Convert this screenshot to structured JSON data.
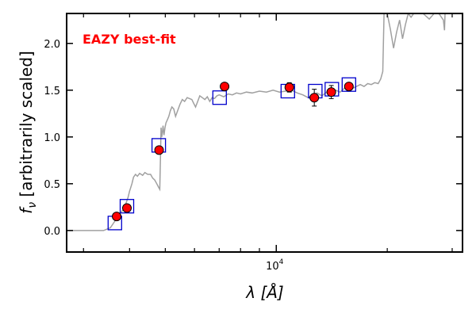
{
  "chart_data": {
    "type": "scatter",
    "xscale": "log",
    "xlim": [
      2700,
      32000
    ],
    "ylim": [
      -0.23,
      2.32
    ],
    "x_major_tick": {
      "value": 10000,
      "base": "10",
      "exp": "4"
    },
    "x_minor_ticks": [
      3000,
      4000,
      5000,
      6000,
      7000,
      8000,
      9000,
      20000,
      30000
    ],
    "y_ticks": [
      0.0,
      0.5,
      1.0,
      1.5,
      2.0
    ],
    "y_tick_labels": [
      "0.0",
      "0.5",
      "1.0",
      "1.5",
      "2.0"
    ],
    "xlabel": "λ [Å]",
    "ylabel_symbol": "f",
    "ylabel_sub": "ν",
    "ylabel_text": " [arbitrarily scaled]",
    "annotation": "EAZY best-fit",
    "colors": {
      "model": "#a0a0a0",
      "observed": "#ff0000",
      "template": "#0000cc",
      "annotation": "#ff0000"
    },
    "model_spectrum": [
      [
        2700,
        0.0
      ],
      [
        3400,
        0.0
      ],
      [
        3550,
        0.03
      ],
      [
        3650,
        0.1
      ],
      [
        3700,
        0.14
      ],
      [
        3760,
        0.18
      ],
      [
        3840,
        0.22
      ],
      [
        3880,
        0.26
      ],
      [
        3920,
        0.3
      ],
      [
        3960,
        0.35
      ],
      [
        4000,
        0.42
      ],
      [
        4060,
        0.5
      ],
      [
        4100,
        0.57
      ],
      [
        4150,
        0.6
      ],
      [
        4200,
        0.58
      ],
      [
        4260,
        0.61
      ],
      [
        4340,
        0.59
      ],
      [
        4400,
        0.62
      ],
      [
        4480,
        0.6
      ],
      [
        4560,
        0.6
      ],
      [
        4620,
        0.56
      ],
      [
        4680,
        0.54
      ],
      [
        4740,
        0.5
      ],
      [
        4800,
        0.46
      ],
      [
        4830,
        0.44
      ],
      [
        4850,
        0.75
      ],
      [
        4870,
        1.1
      ],
      [
        4890,
        1.0
      ],
      [
        4910,
        1.05
      ],
      [
        4930,
        1.12
      ],
      [
        4960,
        1.02
      ],
      [
        4990,
        1.1
      ],
      [
        5020,
        1.15
      ],
      [
        5060,
        1.18
      ],
      [
        5110,
        1.22
      ],
      [
        5160,
        1.28
      ],
      [
        5210,
        1.32
      ],
      [
        5270,
        1.3
      ],
      [
        5330,
        1.22
      ],
      [
        5400,
        1.28
      ],
      [
        5480,
        1.35
      ],
      [
        5560,
        1.4
      ],
      [
        5640,
        1.38
      ],
      [
        5730,
        1.42
      ],
      [
        5820,
        1.41
      ],
      [
        5900,
        1.4
      ],
      [
        5970,
        1.36
      ],
      [
        6040,
        1.32
      ],
      [
        6120,
        1.38
      ],
      [
        6200,
        1.44
      ],
      [
        6300,
        1.42
      ],
      [
        6400,
        1.4
      ],
      [
        6500,
        1.43
      ],
      [
        6600,
        1.38
      ],
      [
        6700,
        1.42
      ],
      [
        6800,
        1.41
      ],
      [
        6900,
        1.44
      ],
      [
        7000,
        1.45
      ],
      [
        7200,
        1.43
      ],
      [
        7400,
        1.46
      ],
      [
        7600,
        1.45
      ],
      [
        7800,
        1.47
      ],
      [
        8000,
        1.46
      ],
      [
        8300,
        1.48
      ],
      [
        8600,
        1.47
      ],
      [
        9000,
        1.49
      ],
      [
        9400,
        1.48
      ],
      [
        9800,
        1.5
      ],
      [
        10200,
        1.48
      ],
      [
        10600,
        1.49
      ],
      [
        11000,
        1.5
      ],
      [
        11400,
        1.47
      ],
      [
        11800,
        1.45
      ],
      [
        12200,
        1.42
      ],
      [
        12500,
        1.45
      ],
      [
        12900,
        1.47
      ],
      [
        13300,
        1.44
      ],
      [
        13700,
        1.48
      ],
      [
        14100,
        1.47
      ],
      [
        14500,
        1.5
      ],
      [
        14900,
        1.48
      ],
      [
        15300,
        1.52
      ],
      [
        15700,
        1.5
      ],
      [
        16100,
        1.52
      ],
      [
        16500,
        1.54
      ],
      [
        16900,
        1.56
      ],
      [
        17300,
        1.54
      ],
      [
        17700,
        1.57
      ],
      [
        18100,
        1.56
      ],
      [
        18500,
        1.58
      ],
      [
        18900,
        1.57
      ],
      [
        19200,
        1.62
      ],
      [
        19450,
        1.7
      ],
      [
        19600,
        2.32
      ],
      [
        20000,
        2.32
      ],
      [
        20400,
        2.15
      ],
      [
        20800,
        1.95
      ],
      [
        21200,
        2.12
      ],
      [
        21600,
        2.25
      ],
      [
        22000,
        2.05
      ],
      [
        22400,
        2.2
      ],
      [
        22800,
        2.32
      ],
      [
        23200,
        2.28
      ],
      [
        23600,
        2.32
      ],
      [
        24200,
        2.32
      ],
      [
        25000,
        2.32
      ],
      [
        26000,
        2.26
      ],
      [
        26800,
        2.32
      ],
      [
        27600,
        2.32
      ],
      [
        28400,
        2.25
      ],
      [
        28600,
        2.14
      ],
      [
        28700,
        2.32
      ],
      [
        29200,
        2.32
      ]
    ],
    "observed_points": [
      {
        "x": 3690,
        "y": 0.15,
        "err": 0.0
      },
      {
        "x": 3935,
        "y": 0.24,
        "err": 0.0
      },
      {
        "x": 4810,
        "y": 0.86,
        "err": 0.0
      },
      {
        "x": 7240,
        "y": 1.54,
        "err": 0.0
      },
      {
        "x": 10850,
        "y": 1.53,
        "err": 0.05
      },
      {
        "x": 12680,
        "y": 1.42,
        "err": 0.09
      },
      {
        "x": 14100,
        "y": 1.48,
        "err": 0.07
      },
      {
        "x": 15740,
        "y": 1.54,
        "err": 0.03
      }
    ],
    "template_points": [
      {
        "x": 3650,
        "y": 0.08
      },
      {
        "x": 3935,
        "y": 0.26
      },
      {
        "x": 4800,
        "y": 0.91
      },
      {
        "x": 7020,
        "y": 1.42
      },
      {
        "x": 10750,
        "y": 1.49
      },
      {
        "x": 12760,
        "y": 1.49
      },
      {
        "x": 14150,
        "y": 1.51
      },
      {
        "x": 15740,
        "y": 1.56
      }
    ]
  }
}
